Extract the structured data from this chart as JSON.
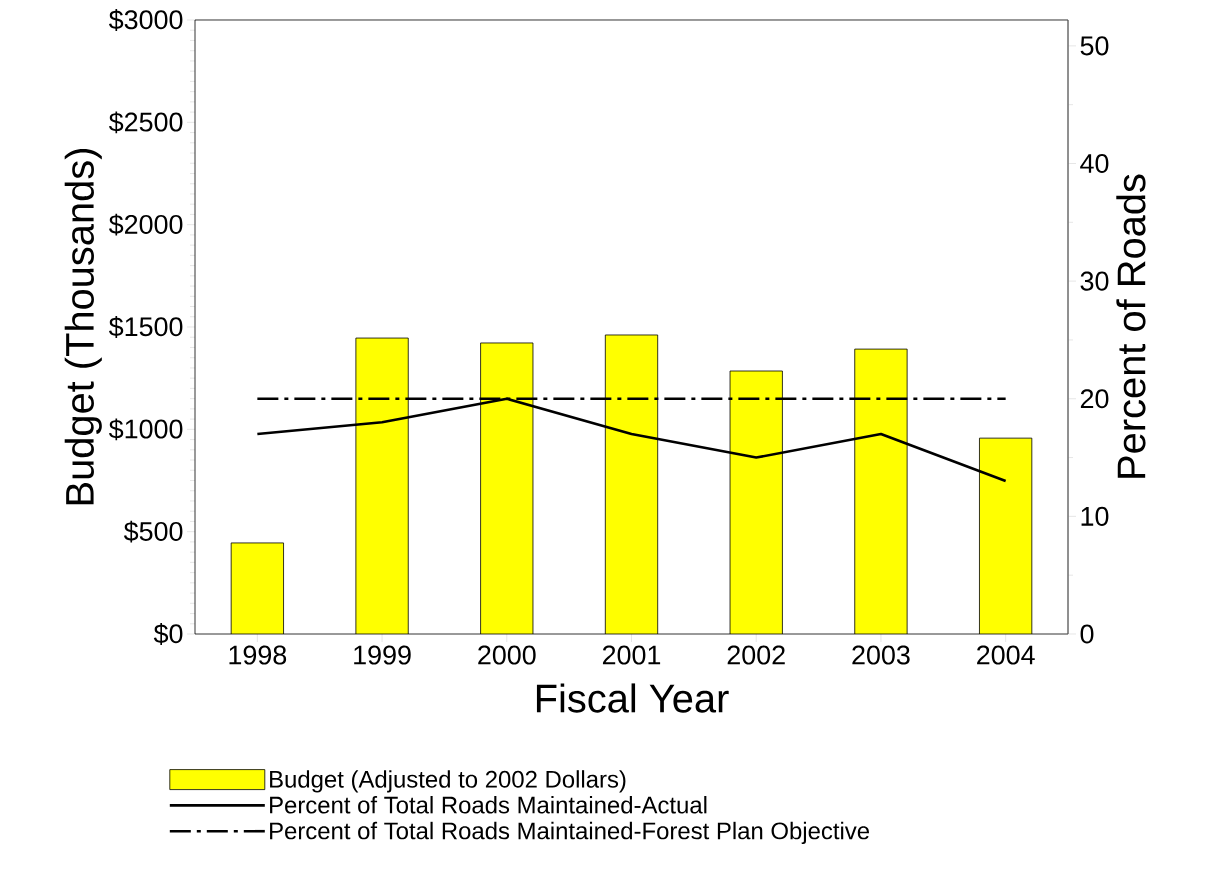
{
  "chart_data": {
    "type": "bar",
    "xlabel": "Fiscal Year",
    "ylabel": "Budget (Thousands)",
    "y2label": "Percent of Roads",
    "categories": [
      "1998",
      "1999",
      "2000",
      "2001",
      "2002",
      "2003",
      "2004"
    ],
    "series": [
      {
        "name": "Budget (Adjusted to 2002 Dollars)",
        "color": "#ffff00",
        "values": [
          445,
          1446,
          1422,
          1461,
          1285,
          1392,
          957
        ]
      },
      {
        "name": "Percent of Total Roads Maintained-Actual",
        "type": "line",
        "axis": "y2",
        "color": "#000000",
        "line_style": "solid",
        "values": [
          17,
          18,
          20,
          17,
          15,
          17,
          13
        ]
      },
      {
        "name": "Percent of Total Roads Maintained-Forest Plan Objective",
        "type": "line",
        "axis": "y2",
        "color": "#000000",
        "line_style": "dashdot",
        "values": [
          20,
          20,
          20,
          20,
          20,
          20,
          20
        ]
      }
    ],
    "ylim": [
      0,
      3000
    ],
    "yticks": [
      {
        "value": 0,
        "label": "$0"
      },
      {
        "value": 500,
        "label": "$500"
      },
      {
        "value": 1000,
        "label": "$1000"
      },
      {
        "value": 1500,
        "label": "$1500"
      },
      {
        "value": 2000,
        "label": "$2000"
      },
      {
        "value": 2500,
        "label": "$2500"
      },
      {
        "value": 3000,
        "label": "$3000"
      }
    ],
    "y2lim": [
      0,
      52.2
    ],
    "y2ticks": [
      0,
      10,
      20,
      30,
      40,
      50
    ],
    "legend": "bottom",
    "grid": false
  }
}
